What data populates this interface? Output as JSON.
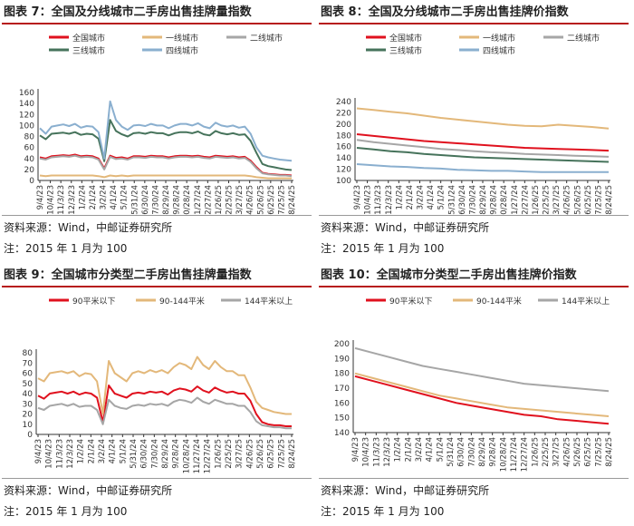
{
  "colors": {
    "national": "#e0111e",
    "tier1": "#e3b87a",
    "tier2": "#a6a6a6",
    "tier3": "#46735b",
    "tier4": "#8aafcf",
    "under90": "#e0111e",
    "s90_144": "#e3b87a",
    "over144": "#a6a6a6"
  },
  "panels": [
    {
      "title": "图表 7：全国及分线城市二手房出售挂牌量指数",
      "source": "资料来源：Wind，中邮证券研究所",
      "note": "注：2015 年 1 月为 100"
    },
    {
      "title": "图表 8：全国及分线城市二手房出售挂牌价指数",
      "source": "资料来源：Wind，中邮证券研究所",
      "note": "注：2015 年 1 月为 100"
    },
    {
      "title": "图表 9：全国城市分类型二手房出售挂牌量指数",
      "source": "资料来源：Wind，中邮证券研究所",
      "note": "注：2015 年 1 月为 100"
    },
    {
      "title": "图表 10：全国城市分类型二手房出售挂牌价指数",
      "source": "资料来源：Wind，中邮证券研究所",
      "note": "注：2015 年 1 月为 100"
    }
  ],
  "chart_data": [
    {
      "type": "line",
      "x_ticks": [
        "9/4/23",
        "10/4/23",
        "11/3/23",
        "12/3/23",
        "1/2/24",
        "2/1/24",
        "3/2/24",
        "4/1/24",
        "5/1/24",
        "5/31/24",
        "6/30/24",
        "7/30/24",
        "8/29/24",
        "9/28/24",
        "10/28/24",
        "11/27/24",
        "12/27/24",
        "1/26/25",
        "2/25/25",
        "3/27/25",
        "4/26/25",
        "5/26/25",
        "6/25/25",
        "7/25/25",
        "8/24/25"
      ],
      "ylim": [
        0,
        160
      ],
      "yticks": [
        0,
        20,
        40,
        60,
        80,
        100,
        120,
        140,
        160
      ],
      "legend": "top-left",
      "grid": false,
      "series": [
        {
          "name": "全国城市",
          "color_key": "national",
          "values": [
            42,
            40,
            44,
            45,
            46,
            45,
            47,
            44,
            45,
            44,
            40,
            22,
            45,
            41,
            42,
            40,
            44,
            44,
            43,
            45,
            44,
            44,
            42,
            44,
            45,
            45,
            44,
            45,
            43,
            42,
            45,
            44,
            43,
            44,
            42,
            43,
            36,
            24,
            14,
            12,
            11,
            10,
            10,
            9
          ]
        },
        {
          "name": "一线城市",
          "color_key": "tier1",
          "values": [
            9,
            8,
            9,
            9,
            9,
            9,
            9,
            9,
            9,
            9,
            8,
            6,
            9,
            8,
            9,
            8,
            9,
            9,
            9,
            9,
            9,
            9,
            9,
            9,
            9,
            9,
            9,
            9,
            9,
            9,
            9,
            9,
            9,
            9,
            9,
            9,
            8,
            6,
            5,
            4,
            4,
            4,
            4,
            4
          ]
        },
        {
          "name": "二线城市",
          "color_key": "tier2",
          "values": [
            40,
            38,
            42,
            43,
            44,
            43,
            45,
            42,
            43,
            42,
            38,
            20,
            43,
            39,
            40,
            38,
            42,
            42,
            41,
            43,
            42,
            42,
            40,
            42,
            43,
            43,
            42,
            43,
            41,
            40,
            43,
            42,
            41,
            42,
            40,
            41,
            34,
            22,
            13,
            11,
            10,
            9,
            9,
            8
          ]
        },
        {
          "name": "三线城市",
          "color_key": "tier3",
          "values": [
            82,
            75,
            85,
            86,
            87,
            85,
            88,
            83,
            85,
            84,
            76,
            35,
            110,
            90,
            84,
            80,
            86,
            87,
            85,
            88,
            86,
            86,
            82,
            86,
            88,
            88,
            86,
            89,
            84,
            82,
            90,
            86,
            84,
            86,
            83,
            84,
            72,
            50,
            30,
            26,
            24,
            22,
            20,
            19
          ]
        },
        {
          "name": "四线城市",
          "color_key": "tier4",
          "values": [
            95,
            85,
            98,
            100,
            102,
            99,
            103,
            96,
            99,
            98,
            88,
            40,
            144,
            110,
            98,
            92,
            100,
            101,
            99,
            103,
            100,
            100,
            95,
            100,
            103,
            103,
            100,
            104,
            98,
            95,
            105,
            100,
            98,
            100,
            96,
            98,
            85,
            60,
            45,
            42,
            40,
            38,
            37,
            36
          ]
        }
      ]
    },
    {
      "type": "line",
      "x_ticks": [
        "9/4/23",
        "10/4/23",
        "11/3/23",
        "12/3/23",
        "1/2/24",
        "2/1/24",
        "3/2/24",
        "4/1/24",
        "5/1/24",
        "5/31/24",
        "6/30/24",
        "7/30/24",
        "8/29/24",
        "9/28/24",
        "10/28/24",
        "11/27/24",
        "12/27/24",
        "1/26/25",
        "2/25/25",
        "3/27/25",
        "4/26/25",
        "5/26/25",
        "6/25/25",
        "7/25/25",
        "8/24/25"
      ],
      "ylim": [
        100,
        240
      ],
      "yticks": [
        100,
        120,
        140,
        160,
        180,
        200,
        220,
        240
      ],
      "legend": "top",
      "grid": false,
      "series": [
        {
          "name": "全国城市",
          "color_key": "national",
          "values": [
            182,
            179,
            176,
            173,
            170,
            168,
            166,
            164,
            162,
            160,
            158,
            157,
            156,
            155,
            154,
            153
          ]
        },
        {
          "name": "一线城市",
          "color_key": "tier1",
          "values": [
            228,
            225,
            222,
            219,
            215,
            211,
            208,
            205,
            202,
            199,
            197,
            196,
            199,
            197,
            195,
            192
          ]
        },
        {
          "name": "二线城市",
          "color_key": "tier2",
          "values": [
            172,
            168,
            165,
            162,
            159,
            156,
            154,
            152,
            150,
            149,
            147,
            146,
            145,
            144,
            143,
            142
          ]
        },
        {
          "name": "三线城市",
          "color_key": "tier3",
          "values": [
            158,
            155,
            152,
            150,
            147,
            145,
            143,
            141,
            140,
            139,
            138,
            137,
            136,
            135,
            134,
            133
          ]
        },
        {
          "name": "四线城市",
          "color_key": "tier4",
          "values": [
            129,
            127,
            125,
            124,
            122,
            121,
            119,
            118,
            117,
            117,
            116,
            115,
            115,
            115,
            115,
            115
          ]
        }
      ]
    },
    {
      "type": "line",
      "x_ticks": [
        "9/4/23",
        "10/4/23",
        "11/3/23",
        "12/3/23",
        "1/2/24",
        "2/1/24",
        "3/2/24",
        "4/1/24",
        "5/1/24",
        "5/31/24",
        "6/30/24",
        "7/30/24",
        "8/29/24",
        "9/28/24",
        "10/28/24",
        "11/27/24",
        "12/27/24",
        "1/26/25",
        "2/25/25",
        "3/27/25",
        "4/26/25",
        "5/26/25",
        "6/25/25",
        "7/25/25",
        "8/24/25"
      ],
      "ylim": [
        0,
        80
      ],
      "yticks": [
        0,
        10,
        20,
        30,
        40,
        50,
        60,
        70,
        80
      ],
      "legend": "top",
      "grid": false,
      "series": [
        {
          "name": "90平米以下",
          "color_key": "under90",
          "values": [
            38,
            35,
            40,
            41,
            42,
            40,
            42,
            39,
            41,
            40,
            36,
            12,
            48,
            40,
            38,
            36,
            40,
            41,
            40,
            42,
            41,
            42,
            39,
            43,
            45,
            44,
            42,
            47,
            43,
            41,
            46,
            43,
            41,
            42,
            40,
            40,
            33,
            20,
            12,
            10,
            9,
            9,
            8,
            8
          ]
        },
        {
          "name": "90-144平米",
          "color_key": "s90_144",
          "values": [
            55,
            52,
            60,
            61,
            62,
            60,
            62,
            57,
            60,
            59,
            52,
            20,
            72,
            60,
            56,
            52,
            60,
            62,
            60,
            63,
            61,
            63,
            60,
            66,
            70,
            68,
            64,
            76,
            68,
            64,
            72,
            66,
            62,
            62,
            58,
            58,
            46,
            32,
            26,
            24,
            22,
            21,
            20,
            20
          ]
        },
        {
          "name": "144平米以上",
          "color_key": "over144",
          "values": [
            26,
            24,
            28,
            29,
            30,
            28,
            30,
            27,
            28,
            28,
            24,
            10,
            34,
            28,
            26,
            25,
            28,
            29,
            28,
            30,
            29,
            30,
            28,
            32,
            34,
            33,
            31,
            36,
            32,
            30,
            34,
            32,
            30,
            30,
            28,
            28,
            22,
            13,
            9,
            8,
            7,
            7,
            6,
            6
          ]
        }
      ]
    },
    {
      "type": "line",
      "x_ticks": [
        "9/4/23",
        "10/4/23",
        "11/3/23",
        "12/3/23",
        "1/2/24",
        "2/1/24",
        "3/2/24",
        "4/1/24",
        "5/1/24",
        "5/31/24",
        "6/30/24",
        "7/30/24",
        "8/29/24",
        "9/28/24",
        "10/28/24",
        "11/27/24",
        "12/27/24",
        "1/26/25",
        "2/25/25",
        "3/27/25",
        "4/26/25",
        "5/26/25",
        "6/25/25",
        "7/25/25",
        "8/24/25"
      ],
      "ylim": [
        140,
        200
      ],
      "yticks": [
        140,
        150,
        160,
        170,
        180,
        190,
        200
      ],
      "legend": "top",
      "grid": false,
      "series": [
        {
          "name": "90平米以下",
          "color_key": "under90",
          "values": [
            178,
            175,
            172,
            169,
            166,
            163,
            160,
            158,
            156,
            154,
            152,
            151,
            149,
            148,
            147,
            146
          ]
        },
        {
          "name": "90-144平米",
          "color_key": "s90_144",
          "values": [
            180,
            177,
            174,
            171,
            168,
            165,
            163,
            161,
            159,
            157,
            156,
            155,
            154,
            153,
            152,
            151
          ]
        },
        {
          "name": "144平米以上",
          "color_key": "over144",
          "values": [
            197,
            194,
            191,
            188,
            185,
            183,
            181,
            179,
            177,
            175,
            173,
            172,
            171,
            170,
            169,
            168
          ]
        }
      ]
    }
  ]
}
